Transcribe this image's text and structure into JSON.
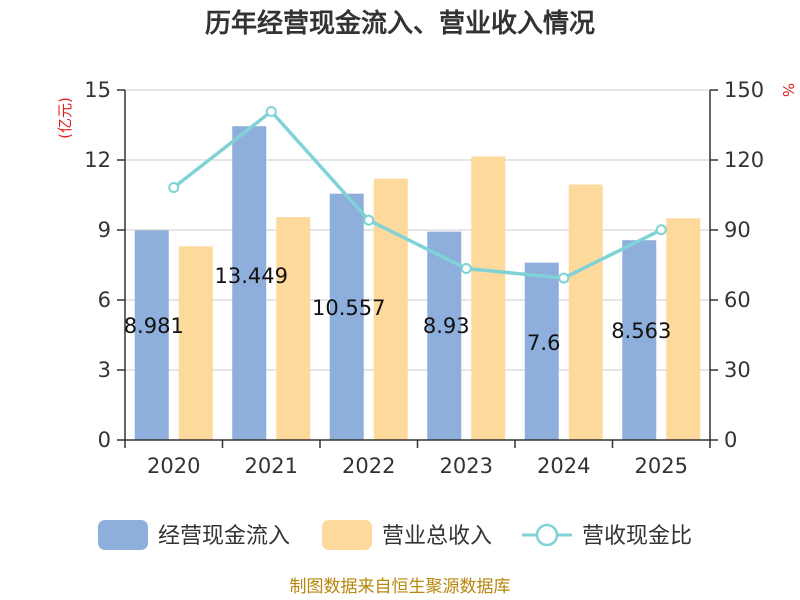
{
  "chart_data": {
    "type": "bar",
    "title": "历年经营现金流入、营业收入情况",
    "categories": [
      "2020",
      "2021",
      "2022",
      "2023",
      "2024",
      "2025"
    ],
    "series": [
      {
        "name": "经营现金流入",
        "type": "bar",
        "axis": "left",
        "color": "#8eaedb",
        "values": [
          8.981,
          13.449,
          10.557,
          8.93,
          7.6,
          8.563
        ],
        "labels": [
          "8.981",
          "13.449",
          "10.557",
          "8.93",
          "7.6",
          "8.563"
        ]
      },
      {
        "name": "营业总收入",
        "type": "bar",
        "axis": "left",
        "color": "#fdd99b",
        "values": [
          8.3,
          9.55,
          11.2,
          12.15,
          10.95,
          9.5
        ]
      },
      {
        "name": "营收现金比",
        "type": "line",
        "axis": "right",
        "color": "#7fd3d6",
        "values": [
          108.2,
          140.8,
          94.2,
          73.5,
          69.4,
          90.1
        ]
      }
    ],
    "left_axis": {
      "label": "(亿元)",
      "min": 0,
      "max": 15,
      "ticks": [
        0,
        3,
        6,
        9,
        12,
        15
      ]
    },
    "right_axis": {
      "label": "%",
      "min": 0,
      "max": 150,
      "ticks": [
        0,
        30,
        60,
        90,
        120,
        150
      ]
    },
    "grid": true,
    "legend_position": "bottom",
    "source": "制图数据来自恒生聚源数据库"
  }
}
